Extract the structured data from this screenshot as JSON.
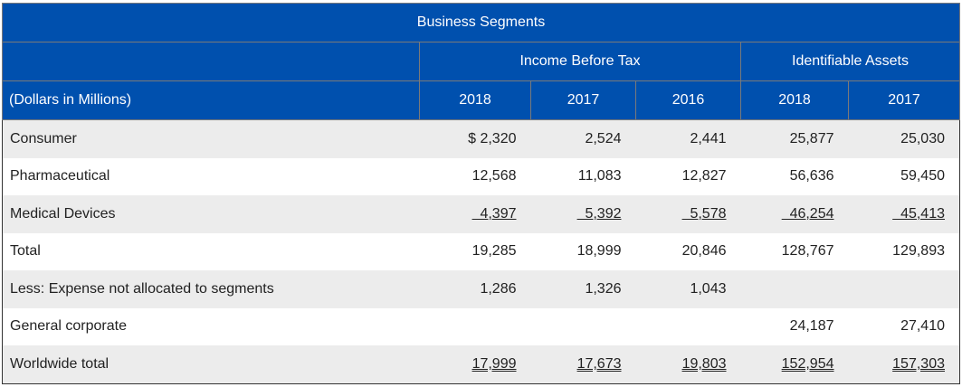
{
  "title": "Business Segments",
  "groups": {
    "income": "Income Before Tax",
    "assets": "Identifiable Assets"
  },
  "row_header": "(Dollars in Millions)",
  "years": [
    "2018",
    "2017",
    "2016",
    "2018",
    "2017"
  ],
  "rows": [
    {
      "label": "Consumer",
      "values": [
        "$ 2,320",
        "2,524",
        "2,441",
        "25,877",
        "25,030"
      ],
      "underline": "none"
    },
    {
      "label": "Pharmaceutical",
      "values": [
        "12,568",
        "11,083",
        "12,827",
        "56,636",
        "59,450"
      ],
      "underline": "none"
    },
    {
      "label": "Medical Devices",
      "values": [
        "  4,397",
        "  5,392",
        "  5,578",
        "  46,254",
        "  45,413"
      ],
      "underline": "single"
    },
    {
      "label": "Total",
      "values": [
        "19,285",
        "18,999",
        "20,846",
        "128,767",
        "129,893"
      ],
      "underline": "none"
    },
    {
      "label": "Less: Expense not allocated to segments",
      "values": [
        "1,286",
        "1,326",
        "1,043",
        "",
        ""
      ],
      "underline": "none"
    },
    {
      "label": "General corporate",
      "values": [
        "",
        "",
        "",
        "24,187",
        "27,410"
      ],
      "underline": "none"
    },
    {
      "label": "Worldwide total",
      "values": [
        "17,999",
        "17,673",
        "19,803",
        "152,954",
        "157,303"
      ],
      "underline": "double"
    }
  ],
  "colors": {
    "header": "#0050ae",
    "alt_row": "#ececec"
  }
}
